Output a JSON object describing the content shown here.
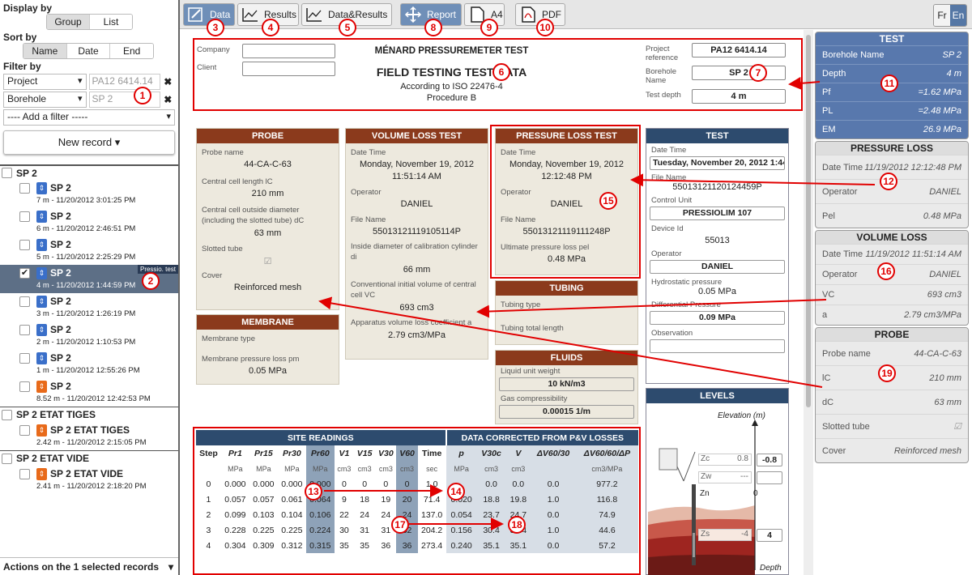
{
  "left": {
    "display_by": "Display by",
    "display_opts": [
      "Group",
      "List"
    ],
    "sort_by": "Sort by",
    "sort_opts": [
      "Name",
      "Date",
      "End"
    ],
    "filter_by": "Filter by",
    "filters": [
      {
        "field": "Project",
        "value": "PA12 6414.14"
      },
      {
        "field": "Borehole",
        "value": "SP 2"
      }
    ],
    "add_filter": "---- Add a filter -----",
    "new_record": "New record ▾",
    "groups": [
      {
        "name": "SP 2",
        "records": [
          {
            "name": "SP 2",
            "sub": "7 m - 11/20/2012 3:01:25 PM"
          },
          {
            "name": "SP 2",
            "sub": "6 m - 11/20/2012 2:46:51 PM"
          },
          {
            "name": "SP 2",
            "sub": "5 m - 11/20/2012 2:25:29 PM"
          },
          {
            "name": "SP 2",
            "sub": "4 m - 11/20/2012 1:44:59 PM"
          },
          {
            "name": "SP 2",
            "sub": "3 m - 11/20/2012 1:26:19 PM"
          },
          {
            "name": "SP 2",
            "sub": "2 m - 11/20/2012 1:10:53 PM"
          },
          {
            "name": "SP 2",
            "sub": "1 m - 11/20/2012 12:55:26 PM"
          },
          {
            "name": "SP 2",
            "sub": "8.52 m - 11/20/2012 12:42:53 PM"
          }
        ]
      },
      {
        "name": "SP 2 ETAT TIGES",
        "records": [
          {
            "name": "SP 2 ETAT TIGES",
            "sub": "2.42 m - 11/20/2012 2:15:05 PM"
          }
        ]
      },
      {
        "name": "SP 2 ETAT VIDE",
        "records": [
          {
            "name": "SP 2 ETAT VIDE",
            "sub": "2.41 m - 11/20/2012 2:18:20 PM"
          }
        ]
      }
    ],
    "badge": "Pressio. test",
    "actions": "Actions on the 1 selected records"
  },
  "toolbar": {
    "data": "Data",
    "results": "Results",
    "data_results": "Data&Results",
    "report": "Report",
    "a4": "A4",
    "pdf": "PDF",
    "fr": "Fr",
    "en": "En"
  },
  "header": {
    "company": "Company",
    "client": "Client",
    "title": "MÉNARD PRESSUREMETER TEST",
    "subtitle": "FIELD TESTING TEST DATA",
    "iso": "According to ISO 22476-4",
    "procedure": "Procedure B",
    "proj_ref_label": "Project reference",
    "proj_ref": "PA12 6414.14",
    "borehole_label": "Borehole Name",
    "borehole": "SP 2",
    "depth_label": "Test depth",
    "depth": "4 m"
  },
  "probe": {
    "title": "PROBE",
    "name_l": "Probe name",
    "name": "44-CA-C-63",
    "len_l": "Central cell length lC",
    "len": "210 mm",
    "dia_l": "Central cell outside diameter (including the slotted tube) dC",
    "dia": "63 mm",
    "slot_l": "Slotted tube",
    "cover_l": "Cover",
    "cover": "Reinforced mesh"
  },
  "membrane": {
    "title": "MEMBRANE",
    "type_l": "Membrane type",
    "loss_l": "Membrane pressure loss pm",
    "loss": "0.05 MPa"
  },
  "volume": {
    "title": "VOLUME LOSS TEST",
    "dt_l": "Date Time",
    "dt1": "Monday, November 19, 2012",
    "dt2": "11:51:14 AM",
    "op_l": "Operator",
    "op": "DANIEL",
    "fn_l": "File Name",
    "fn": "55013121119105114P",
    "di_l": "Inside diameter of calibration cylinder di",
    "di": "66 mm",
    "vc_l": "Conventional initial volume of central cell VC",
    "vc": "693 cm3",
    "a_l": "Apparatus volume loss coefficient a",
    "a": "2.79 cm3/MPa"
  },
  "pressure": {
    "title": "PRESSURE LOSS TEST",
    "dt_l": "Date Time",
    "dt1": "Monday, November 19, 2012",
    "dt2": "12:12:48 PM",
    "op_l": "Operator",
    "op": "DANIEL",
    "fn_l": "File Name",
    "fn": "55013121119111248P",
    "pel_l": "Ultimate pressure loss pel",
    "pel": "0.48 MPa"
  },
  "tubing": {
    "title": "TUBING",
    "type_l": "Tubing type",
    "len_l": "Tubing total length"
  },
  "fluids": {
    "title": "FLUIDS",
    "w_l": "Liquid unit weight",
    "w": "10 kN/m3",
    "g_l": "Gas compressibility",
    "g": "0.00015 1/m"
  },
  "test": {
    "title": "TEST",
    "dt_l": "Date Time",
    "dt": "Tuesday, November 20, 2012 1:44:",
    "fn_l": "File Name",
    "fn": "55013121120124459P",
    "cu_l": "Control Unit",
    "cu": "PRESSIOLIM 107",
    "dev_l": "Device Id",
    "dev": "55013",
    "op_l": "Operator",
    "op": "DANIEL",
    "hp_l": "Hydrostatic pressure",
    "hp": "0.05 MPa",
    "dp_l": "Differential Pressure",
    "dp": "0.09 MPa",
    "obs_l": "Observation"
  },
  "levels": {
    "title": "LEVELS",
    "elev": "Elevation (m)",
    "depth": "Depth",
    "zc": "Zc",
    "zc_v": "0.8",
    "zc_box": "-0.8",
    "zw": "Zw",
    "zw_v": "---",
    "zn": "Zn",
    "zn_v": "0",
    "zs": "Zs",
    "zs_v": "-4",
    "zs_box": "4"
  },
  "readings": {
    "h1": "SITE READINGS",
    "h2": "DATA CORRECTED FROM P&V LOSSES",
    "cols": [
      "Step",
      "Pr1",
      "Pr15",
      "Pr30",
      "Pr60",
      "V1",
      "V15",
      "V30",
      "V60",
      "Time",
      "p",
      "V30c",
      "V",
      "ΔV60/30",
      "ΔV60/60/ΔP"
    ],
    "units": [
      "",
      "MPa",
      "MPa",
      "MPa",
      "MPa",
      "cm3",
      "cm3",
      "cm3",
      "cm3",
      "sec",
      "MPa",
      "cm3",
      "cm3",
      "",
      "cm3/MPa"
    ],
    "rows": [
      [
        "0",
        "0.000",
        "0.000",
        "0.000",
        "0.000",
        "0",
        "0",
        "0",
        "0",
        "1.0",
        "",
        "0.0",
        "0.0",
        "0.0",
        "977.2"
      ],
      [
        "1",
        "0.057",
        "0.057",
        "0.061",
        "0.064",
        "9",
        "18",
        "19",
        "20",
        "71.4",
        "0.020",
        "18.8",
        "19.8",
        "1.0",
        "116.8"
      ],
      [
        "2",
        "0.099",
        "0.103",
        "0.104",
        "0.106",
        "22",
        "24",
        "24",
        "24",
        "137.0",
        "0.054",
        "23.7",
        "24.7",
        "0.0",
        "74.9"
      ],
      [
        "3",
        "0.228",
        "0.225",
        "0.225",
        "0.224",
        "30",
        "31",
        "31",
        "32",
        "204.2",
        "0.156",
        "30.4",
        "31.4",
        "1.0",
        "44.6"
      ],
      [
        "4",
        "0.304",
        "0.309",
        "0.312",
        "0.315",
        "35",
        "35",
        "36",
        "36",
        "273.4",
        "0.240",
        "35.1",
        "35.1",
        "0.0",
        "57.2"
      ]
    ]
  },
  "rpanel": {
    "test_title": "TEST",
    "test_rows": [
      [
        "Borehole Name",
        "SP 2"
      ],
      [
        "Depth",
        "4 m"
      ],
      [
        "Pf",
        "=1.62 MPa"
      ],
      [
        "PL",
        "=2.48 MPa"
      ],
      [
        "EM",
        "26.9 MPa"
      ]
    ],
    "pl_title": "PRESSURE LOSS",
    "pl_rows": [
      [
        "Date Time",
        "11/19/2012 12:12:48 PM"
      ],
      [
        "Operator",
        "DANIEL"
      ],
      [
        "Pel",
        "0.48 MPa"
      ]
    ],
    "vl_title": "VOLUME LOSS",
    "vl_rows": [
      [
        "Date Time",
        "11/19/2012 11:51:14 AM"
      ],
      [
        "Operator",
        "DANIEL"
      ],
      [
        "VC",
        "693 cm3"
      ],
      [
        "a",
        "2.79 cm3/MPa"
      ]
    ],
    "pr_title": "PROBE",
    "pr_rows": [
      [
        "Probe name",
        "44-CA-C-63"
      ],
      [
        "lC",
        "210 mm"
      ],
      [
        "dC",
        "63 mm"
      ],
      [
        "Slotted tube",
        ""
      ],
      [
        "Cover",
        "Reinforced mesh"
      ]
    ]
  },
  "markers": [
    "1",
    "2",
    "3",
    "4",
    "5",
    "6",
    "7",
    "8",
    "9",
    "10",
    "11",
    "12",
    "13",
    "14",
    "15",
    "16",
    "17",
    "18",
    "19"
  ],
  "colors": {
    "marker": "#e10000",
    "panel_head": "#8b3a1c",
    "test_head": "#2d4b6e",
    "selected": "#5878ad"
  }
}
